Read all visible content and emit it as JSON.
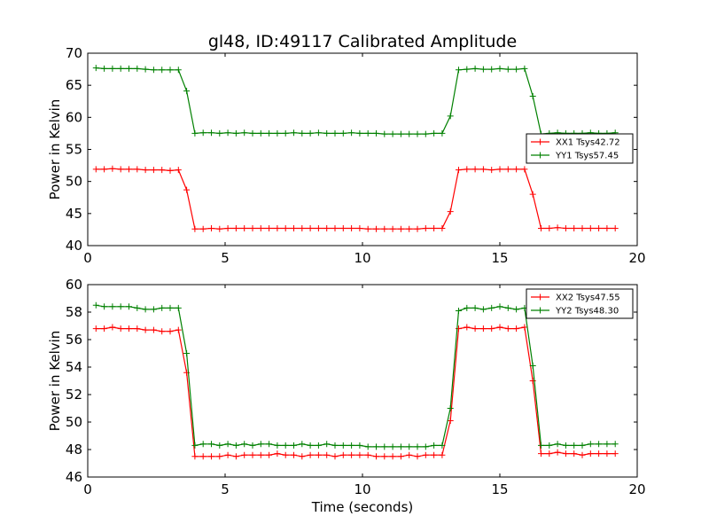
{
  "figure": {
    "title": "gl48, ID:49117 Calibrated Amplitude",
    "xlabel": "Time (seconds)"
  },
  "chart_data": [
    {
      "type": "line",
      "title": "gl48, ID:49117 Calibrated Amplitude",
      "xlabel": "",
      "ylabel": "Power in Kelvin",
      "xlim": [
        0,
        20
      ],
      "ylim": [
        40,
        70
      ],
      "xticks": [
        0,
        5,
        10,
        15,
        20
      ],
      "yticks": [
        40,
        45,
        50,
        55,
        60,
        65,
        70
      ],
      "legend_position": "center-right",
      "x": [
        0.3,
        0.6,
        0.9,
        1.2,
        1.5,
        1.8,
        2.1,
        2.4,
        2.7,
        3.0,
        3.3,
        3.6,
        3.9,
        4.2,
        4.5,
        4.8,
        5.1,
        5.4,
        5.7,
        6.0,
        6.3,
        6.6,
        6.9,
        7.2,
        7.5,
        7.8,
        8.1,
        8.4,
        8.7,
        9.0,
        9.3,
        9.6,
        9.9,
        10.2,
        10.5,
        10.8,
        11.1,
        11.4,
        11.7,
        12.0,
        12.3,
        12.6,
        12.9,
        13.2,
        13.5,
        13.8,
        14.1,
        14.4,
        14.7,
        15.0,
        15.3,
        15.6,
        15.9,
        16.2,
        16.5,
        16.8,
        17.1,
        17.4,
        17.7,
        18.0,
        18.3,
        18.6,
        18.9,
        19.2
      ],
      "series": [
        {
          "name": "XX1 Tsys42.72",
          "color": "#ff0000",
          "values": [
            51.9,
            51.9,
            52.0,
            51.9,
            51.9,
            51.9,
            51.8,
            51.8,
            51.8,
            51.7,
            51.8,
            48.7,
            42.6,
            42.6,
            42.7,
            42.6,
            42.7,
            42.7,
            42.7,
            42.7,
            42.7,
            42.7,
            42.7,
            42.7,
            42.7,
            42.7,
            42.7,
            42.7,
            42.7,
            42.7,
            42.7,
            42.7,
            42.7,
            42.6,
            42.6,
            42.6,
            42.6,
            42.6,
            42.6,
            42.6,
            42.7,
            42.7,
            42.7,
            45.3,
            51.8,
            51.9,
            51.9,
            51.9,
            51.8,
            51.9,
            51.9,
            51.9,
            51.9,
            48.0,
            42.7,
            42.7,
            42.8,
            42.7,
            42.7,
            42.7,
            42.7,
            42.7,
            42.7,
            42.7
          ]
        },
        {
          "name": "YY1 Tsys57.45",
          "color": "#008000",
          "values": [
            67.7,
            67.6,
            67.6,
            67.6,
            67.6,
            67.6,
            67.5,
            67.4,
            67.4,
            67.4,
            67.4,
            64.1,
            57.5,
            57.6,
            57.6,
            57.5,
            57.6,
            57.5,
            57.6,
            57.5,
            57.5,
            57.5,
            57.5,
            57.5,
            57.6,
            57.5,
            57.5,
            57.6,
            57.5,
            57.5,
            57.5,
            57.6,
            57.5,
            57.5,
            57.5,
            57.4,
            57.4,
            57.4,
            57.4,
            57.4,
            57.4,
            57.5,
            57.5,
            60.2,
            67.4,
            67.5,
            67.6,
            67.5,
            67.5,
            67.6,
            67.5,
            67.5,
            67.6,
            63.3,
            57.4,
            57.5,
            57.6,
            57.5,
            57.5,
            57.5,
            57.6,
            57.5,
            57.5,
            57.6
          ]
        }
      ]
    },
    {
      "type": "line",
      "title": "",
      "xlabel": "Time (seconds)",
      "ylabel": "Power in Kelvin",
      "xlim": [
        0,
        20
      ],
      "ylim": [
        46,
        60
      ],
      "xticks": [
        0,
        5,
        10,
        15,
        20
      ],
      "yticks": [
        46,
        48,
        50,
        52,
        54,
        56,
        58,
        60
      ],
      "legend_position": "top-right",
      "x": [
        0.3,
        0.6,
        0.9,
        1.2,
        1.5,
        1.8,
        2.1,
        2.4,
        2.7,
        3.0,
        3.3,
        3.6,
        3.9,
        4.2,
        4.5,
        4.8,
        5.1,
        5.4,
        5.7,
        6.0,
        6.3,
        6.6,
        6.9,
        7.2,
        7.5,
        7.8,
        8.1,
        8.4,
        8.7,
        9.0,
        9.3,
        9.6,
        9.9,
        10.2,
        10.5,
        10.8,
        11.1,
        11.4,
        11.7,
        12.0,
        12.3,
        12.6,
        12.9,
        13.2,
        13.5,
        13.8,
        14.1,
        14.4,
        14.7,
        15.0,
        15.3,
        15.6,
        15.9,
        16.2,
        16.5,
        16.8,
        17.1,
        17.4,
        17.7,
        18.0,
        18.3,
        18.6,
        18.9,
        19.2
      ],
      "series": [
        {
          "name": "XX2 Tsys47.55",
          "color": "#ff0000",
          "values": [
            56.8,
            56.8,
            56.9,
            56.8,
            56.8,
            56.8,
            56.7,
            56.7,
            56.6,
            56.6,
            56.7,
            53.6,
            47.5,
            47.5,
            47.5,
            47.5,
            47.6,
            47.5,
            47.6,
            47.6,
            47.6,
            47.6,
            47.7,
            47.6,
            47.6,
            47.5,
            47.6,
            47.6,
            47.6,
            47.5,
            47.6,
            47.6,
            47.6,
            47.6,
            47.5,
            47.5,
            47.5,
            47.5,
            47.6,
            47.5,
            47.6,
            47.6,
            47.6,
            50.1,
            56.8,
            56.9,
            56.8,
            56.8,
            56.8,
            56.9,
            56.8,
            56.8,
            56.9,
            53.0,
            47.7,
            47.7,
            47.8,
            47.7,
            47.7,
            47.6,
            47.7,
            47.7,
            47.7,
            47.7
          ]
        },
        {
          "name": "YY2 Tsys48.30",
          "color": "#008000",
          "values": [
            58.5,
            58.4,
            58.4,
            58.4,
            58.4,
            58.3,
            58.2,
            58.2,
            58.3,
            58.3,
            58.3,
            55.0,
            48.3,
            48.4,
            48.4,
            48.3,
            48.4,
            48.3,
            48.4,
            48.3,
            48.4,
            48.4,
            48.3,
            48.3,
            48.3,
            48.4,
            48.3,
            48.3,
            48.4,
            48.3,
            48.3,
            48.3,
            48.3,
            48.2,
            48.2,
            48.2,
            48.2,
            48.2,
            48.2,
            48.2,
            48.2,
            48.3,
            48.3,
            51.0,
            58.1,
            58.3,
            58.3,
            58.2,
            58.3,
            58.4,
            58.3,
            58.2,
            58.3,
            54.1,
            48.3,
            48.3,
            48.4,
            48.3,
            48.3,
            48.3,
            48.4,
            48.4,
            48.4,
            48.4
          ]
        }
      ]
    }
  ]
}
